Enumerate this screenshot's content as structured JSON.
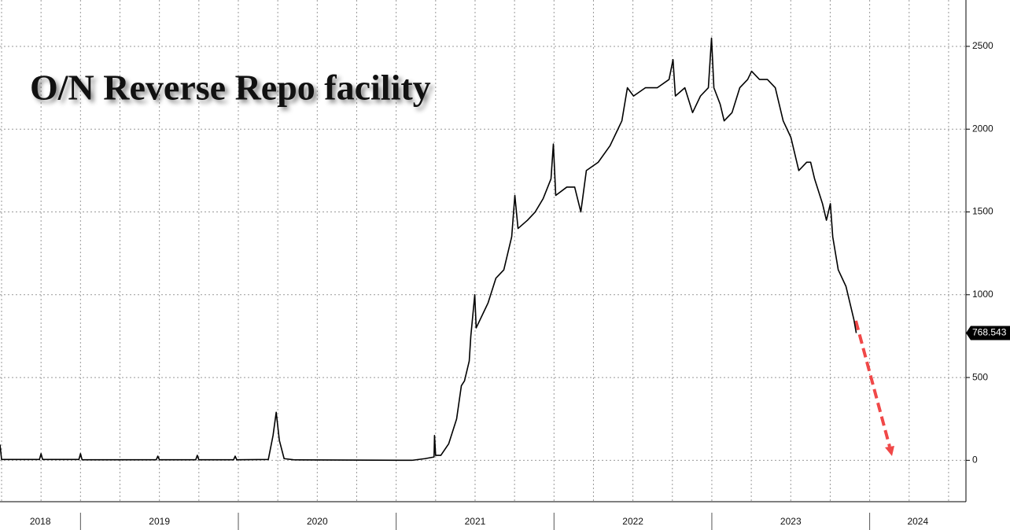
{
  "chart_data": {
    "type": "line",
    "title": "O/N Reverse Repo facility",
    "x": [
      2018.49,
      2018.5,
      2018.74,
      2018.75,
      2018.76,
      2018.99,
      2019.0,
      2019.01,
      2019.48,
      2019.49,
      2019.5,
      2019.73,
      2019.74,
      2019.75,
      2019.97,
      2019.98,
      2019.99,
      2020.19,
      2020.22,
      2020.24,
      2020.26,
      2020.29,
      2020.35,
      2021.1,
      2021.183,
      2021.24,
      2021.243,
      2021.25,
      2021.283,
      2021.333,
      2021.383,
      2021.413,
      2021.433,
      2021.463,
      2021.473,
      2021.498,
      2021.507,
      2021.557,
      2021.582,
      2021.632,
      2021.682,
      2021.732,
      2021.752,
      2021.772,
      2021.832,
      2021.881,
      2021.931,
      2021.981,
      2021.996,
      2022.011,
      2022.081,
      2022.131,
      2022.17,
      2022.205,
      2022.28,
      2022.355,
      2022.405,
      2022.43,
      2022.465,
      2022.504,
      2022.579,
      2022.654,
      2022.729,
      2022.754,
      2022.769,
      2022.829,
      2022.878,
      2022.928,
      2022.978,
      2022.998,
      2023.013,
      2023.053,
      2023.078,
      2023.128,
      2023.177,
      2023.227,
      2023.252,
      2023.302,
      2023.352,
      2023.402,
      2023.452,
      2023.501,
      2023.551,
      2023.601,
      2023.626,
      2023.651,
      2023.701,
      2023.726,
      2023.751,
      2023.766,
      2023.801,
      2023.85,
      2023.9,
      2023.915
    ],
    "values": [
      95,
      5,
      5,
      40,
      5,
      5,
      40,
      3,
      3,
      25,
      3,
      3,
      30,
      3,
      3,
      25,
      3,
      5,
      150,
      290,
      120,
      10,
      3,
      0,
      10,
      20,
      150,
      30,
      30,
      100,
      250,
      450,
      480,
      600,
      750,
      1000,
      800,
      900,
      950,
      1100,
      1150,
      1350,
      1600,
      1400,
      1450,
      1500,
      1580,
      1700,
      1910,
      1600,
      1650,
      1650,
      1500,
      1750,
      1800,
      1900,
      2000,
      2050,
      2250,
      2200,
      2250,
      2250,
      2300,
      2420,
      2200,
      2250,
      2100,
      2200,
      2250,
      2550,
      2250,
      2150,
      2050,
      2100,
      2250,
      2300,
      2350,
      2300,
      2300,
      2250,
      2050,
      1950,
      1750,
      1800,
      1800,
      1700,
      1550,
      1450,
      1550,
      1350,
      1150,
      1050,
      850,
      768.543
    ],
    "color": "#000000",
    "xlim": [
      2018.49,
      2024.61
    ],
    "xticks": [
      2019,
      2020,
      2021,
      2022,
      2023,
      2024
    ],
    "xgrid": [
      2018.5,
      2018.75,
      2019,
      2019.25,
      2019.5,
      2019.75,
      2020,
      2020.25,
      2020.5,
      2020.75,
      2021,
      2021.25,
      2021.5,
      2021.75,
      2022,
      2022.25,
      2022.5,
      2022.75,
      2023,
      2023.25,
      2023.5,
      2023.75,
      2024,
      2024.25,
      2024.5
    ],
    "x_labels": [
      "2018",
      "2019",
      "2020",
      "2021",
      "2022",
      "2023",
      "2024"
    ],
    "ylim": [
      -250,
      2780
    ],
    "yticks": [
      0,
      500,
      1000,
      1500,
      2000,
      2500
    ],
    "grid": true
  }
}
